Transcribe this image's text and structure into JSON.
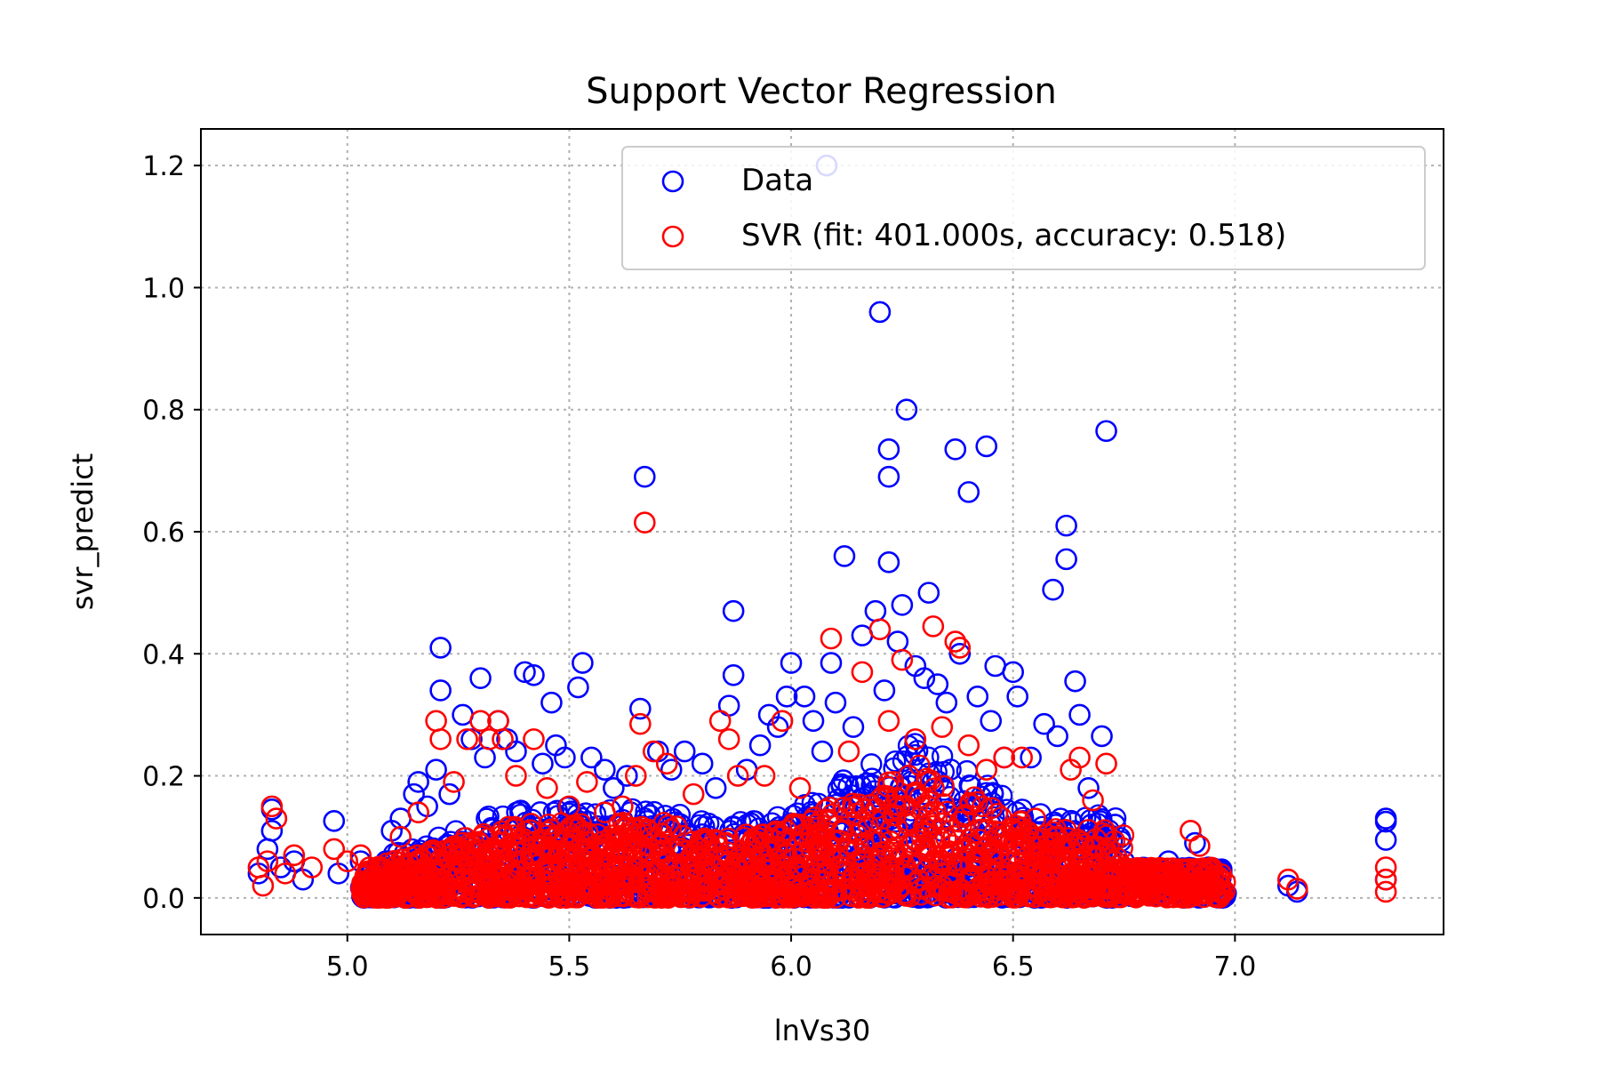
{
  "chart_data": {
    "type": "scatter",
    "title": "Support Vector Regression",
    "xlabel": "lnVs30",
    "ylabel": "svr_predict",
    "xlim": [
      4.67,
      7.47
    ],
    "ylim": [
      -0.06,
      1.26
    ],
    "xticks": [
      5.0,
      5.5,
      6.0,
      6.5,
      7.0
    ],
    "yticks": [
      0.0,
      0.2,
      0.4,
      0.6,
      0.8,
      1.0,
      1.2
    ],
    "grid": true,
    "legend_position": "top-right",
    "marker": "hollow-circle",
    "series": [
      {
        "name": "Data",
        "color": "#0000ff",
        "points": [
          [
            4.8,
            0.04
          ],
          [
            4.82,
            0.08
          ],
          [
            4.83,
            0.11
          ],
          [
            4.83,
            0.145
          ],
          [
            4.85,
            0.05
          ],
          [
            4.88,
            0.06
          ],
          [
            4.9,
            0.03
          ],
          [
            4.97,
            0.126
          ],
          [
            4.98,
            0.04
          ],
          [
            5.03,
            0.06
          ],
          [
            5.06,
            0.03
          ],
          [
            5.1,
            0.11
          ],
          [
            5.12,
            0.13
          ],
          [
            5.15,
            0.17
          ],
          [
            5.16,
            0.19
          ],
          [
            5.18,
            0.15
          ],
          [
            5.2,
            0.21
          ],
          [
            5.21,
            0.41
          ],
          [
            5.21,
            0.34
          ],
          [
            5.23,
            0.17
          ],
          [
            5.26,
            0.3
          ],
          [
            5.28,
            0.26
          ],
          [
            5.3,
            0.36
          ],
          [
            5.31,
            0.23
          ],
          [
            5.34,
            0.29
          ],
          [
            5.36,
            0.26
          ],
          [
            5.38,
            0.24
          ],
          [
            5.4,
            0.37
          ],
          [
            5.42,
            0.365
          ],
          [
            5.44,
            0.22
          ],
          [
            5.46,
            0.32
          ],
          [
            5.47,
            0.25
          ],
          [
            5.49,
            0.23
          ],
          [
            5.52,
            0.345
          ],
          [
            5.53,
            0.385
          ],
          [
            5.55,
            0.23
          ],
          [
            5.58,
            0.21
          ],
          [
            5.6,
            0.18
          ],
          [
            5.63,
            0.2
          ],
          [
            5.66,
            0.31
          ],
          [
            5.67,
            0.69
          ],
          [
            5.7,
            0.24
          ],
          [
            5.73,
            0.21
          ],
          [
            5.76,
            0.24
          ],
          [
            5.8,
            0.22
          ],
          [
            5.83,
            0.18
          ],
          [
            5.86,
            0.315
          ],
          [
            5.87,
            0.47
          ],
          [
            5.87,
            0.365
          ],
          [
            5.9,
            0.21
          ],
          [
            5.93,
            0.25
          ],
          [
            5.95,
            0.3
          ],
          [
            5.97,
            0.28
          ],
          [
            5.99,
            0.33
          ],
          [
            6.0,
            0.385
          ],
          [
            6.03,
            0.33
          ],
          [
            6.05,
            0.29
          ],
          [
            6.07,
            0.24
          ],
          [
            6.08,
            1.2
          ],
          [
            6.09,
            0.385
          ],
          [
            6.1,
            0.32
          ],
          [
            6.12,
            0.56
          ],
          [
            6.14,
            0.28
          ],
          [
            6.16,
            0.43
          ],
          [
            6.19,
            0.47
          ],
          [
            6.2,
            0.96
          ],
          [
            6.21,
            0.34
          ],
          [
            6.22,
            0.55
          ],
          [
            6.22,
            0.735
          ],
          [
            6.22,
            0.69
          ],
          [
            6.24,
            0.42
          ],
          [
            6.25,
            0.48
          ],
          [
            6.26,
            0.8
          ],
          [
            6.28,
            0.38
          ],
          [
            6.3,
            0.36
          ],
          [
            6.31,
            0.5
          ],
          [
            6.33,
            0.35
          ],
          [
            6.35,
            0.32
          ],
          [
            6.37,
            0.735
          ],
          [
            6.38,
            0.4
          ],
          [
            6.4,
            0.665
          ],
          [
            6.42,
            0.33
          ],
          [
            6.44,
            0.74
          ],
          [
            6.45,
            0.29
          ],
          [
            6.46,
            0.38
          ],
          [
            6.48,
            0.23
          ],
          [
            6.5,
            0.37
          ],
          [
            6.51,
            0.33
          ],
          [
            6.54,
            0.23
          ],
          [
            6.57,
            0.285
          ],
          [
            6.59,
            0.505
          ],
          [
            6.6,
            0.265
          ],
          [
            6.62,
            0.61
          ],
          [
            6.62,
            0.555
          ],
          [
            6.64,
            0.355
          ],
          [
            6.65,
            0.3
          ],
          [
            6.67,
            0.18
          ],
          [
            6.7,
            0.265
          ],
          [
            6.71,
            0.765
          ],
          [
            6.73,
            0.12
          ],
          [
            6.75,
            0.06
          ],
          [
            6.8,
            0.04
          ],
          [
            6.85,
            0.06
          ],
          [
            6.88,
            0.03
          ],
          [
            6.91,
            0.09
          ],
          [
            6.94,
            0.05
          ],
          [
            6.96,
            0.02
          ],
          [
            7.12,
            0.02
          ],
          [
            7.14,
            0.01
          ],
          [
            7.34,
            0.13
          ],
          [
            7.34,
            0.125
          ],
          [
            7.34,
            0.095
          ],
          [
            7.34,
            0.03
          ]
        ]
      },
      {
        "name": "SVR (fit: 401.000s, accuracy: 0.518)",
        "color": "#ff0000",
        "points": [
          [
            4.8,
            0.05
          ],
          [
            4.81,
            0.02
          ],
          [
            4.82,
            0.06
          ],
          [
            4.83,
            0.15
          ],
          [
            4.84,
            0.13
          ],
          [
            4.86,
            0.04
          ],
          [
            4.88,
            0.07
          ],
          [
            4.92,
            0.05
          ],
          [
            4.97,
            0.08
          ],
          [
            5.0,
            0.06
          ],
          [
            5.03,
            0.07
          ],
          [
            5.05,
            0.05
          ],
          [
            5.12,
            0.1
          ],
          [
            5.16,
            0.14
          ],
          [
            5.2,
            0.29
          ],
          [
            5.21,
            0.26
          ],
          [
            5.24,
            0.19
          ],
          [
            5.27,
            0.26
          ],
          [
            5.3,
            0.29
          ],
          [
            5.32,
            0.26
          ],
          [
            5.34,
            0.29
          ],
          [
            5.35,
            0.26
          ],
          [
            5.38,
            0.2
          ],
          [
            5.42,
            0.26
          ],
          [
            5.45,
            0.18
          ],
          [
            5.5,
            0.15
          ],
          [
            5.54,
            0.19
          ],
          [
            5.58,
            0.14
          ],
          [
            5.62,
            0.15
          ],
          [
            5.65,
            0.2
          ],
          [
            5.66,
            0.285
          ],
          [
            5.67,
            0.615
          ],
          [
            5.69,
            0.24
          ],
          [
            5.72,
            0.22
          ],
          [
            5.78,
            0.17
          ],
          [
            5.84,
            0.29
          ],
          [
            5.86,
            0.26
          ],
          [
            5.88,
            0.2
          ],
          [
            5.94,
            0.2
          ],
          [
            5.98,
            0.29
          ],
          [
            6.02,
            0.18
          ],
          [
            6.09,
            0.425
          ],
          [
            6.13,
            0.24
          ],
          [
            6.16,
            0.37
          ],
          [
            6.2,
            0.44
          ],
          [
            6.22,
            0.29
          ],
          [
            6.25,
            0.39
          ],
          [
            6.28,
            0.26
          ],
          [
            6.32,
            0.445
          ],
          [
            6.34,
            0.28
          ],
          [
            6.37,
            0.42
          ],
          [
            6.38,
            0.41
          ],
          [
            6.4,
            0.25
          ],
          [
            6.44,
            0.21
          ],
          [
            6.48,
            0.23
          ],
          [
            6.52,
            0.23
          ],
          [
            6.55,
            0.13
          ],
          [
            6.6,
            0.1
          ],
          [
            6.63,
            0.21
          ],
          [
            6.65,
            0.23
          ],
          [
            6.68,
            0.16
          ],
          [
            6.71,
            0.22
          ],
          [
            6.75,
            0.05
          ],
          [
            6.8,
            0.03
          ],
          [
            6.85,
            0.04
          ],
          [
            6.9,
            0.11
          ],
          [
            6.92,
            0.085
          ],
          [
            6.95,
            0.02
          ],
          [
            7.12,
            0.03
          ],
          [
            7.14,
            0.015
          ],
          [
            7.34,
            0.05
          ],
          [
            7.34,
            0.03
          ],
          [
            7.34,
            0.01
          ]
        ]
      }
    ]
  }
}
